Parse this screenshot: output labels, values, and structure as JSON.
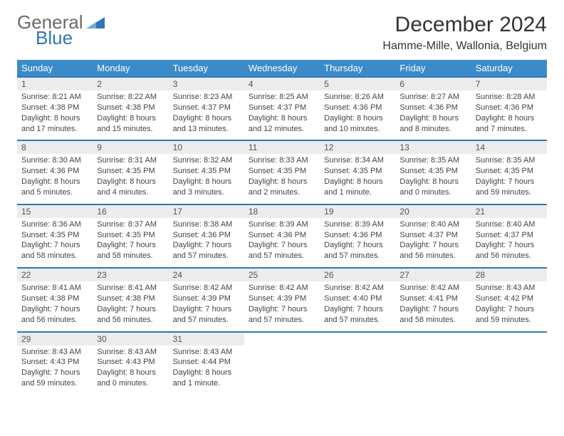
{
  "logo": {
    "word1": "General",
    "word2": "Blue",
    "tri_color": "#2f76b9",
    "gray": "#6a6a6a"
  },
  "title": "December 2024",
  "location": "Hamme-Mille, Wallonia, Belgium",
  "header_bg": "#3b8bc9",
  "accent_border": "#2f76b9",
  "daynum_bg": "#ececec",
  "text_color": "#444444",
  "day_names": [
    "Sunday",
    "Monday",
    "Tuesday",
    "Wednesday",
    "Thursday",
    "Friday",
    "Saturday"
  ],
  "weeks": [
    [
      {
        "n": "1",
        "sr": "Sunrise: 8:21 AM",
        "ss": "Sunset: 4:38 PM",
        "d1": "Daylight: 8 hours",
        "d2": "and 17 minutes."
      },
      {
        "n": "2",
        "sr": "Sunrise: 8:22 AM",
        "ss": "Sunset: 4:38 PM",
        "d1": "Daylight: 8 hours",
        "d2": "and 15 minutes."
      },
      {
        "n": "3",
        "sr": "Sunrise: 8:23 AM",
        "ss": "Sunset: 4:37 PM",
        "d1": "Daylight: 8 hours",
        "d2": "and 13 minutes."
      },
      {
        "n": "4",
        "sr": "Sunrise: 8:25 AM",
        "ss": "Sunset: 4:37 PM",
        "d1": "Daylight: 8 hours",
        "d2": "and 12 minutes."
      },
      {
        "n": "5",
        "sr": "Sunrise: 8:26 AM",
        "ss": "Sunset: 4:36 PM",
        "d1": "Daylight: 8 hours",
        "d2": "and 10 minutes."
      },
      {
        "n": "6",
        "sr": "Sunrise: 8:27 AM",
        "ss": "Sunset: 4:36 PM",
        "d1": "Daylight: 8 hours",
        "d2": "and 8 minutes."
      },
      {
        "n": "7",
        "sr": "Sunrise: 8:28 AM",
        "ss": "Sunset: 4:36 PM",
        "d1": "Daylight: 8 hours",
        "d2": "and 7 minutes."
      }
    ],
    [
      {
        "n": "8",
        "sr": "Sunrise: 8:30 AM",
        "ss": "Sunset: 4:36 PM",
        "d1": "Daylight: 8 hours",
        "d2": "and 5 minutes."
      },
      {
        "n": "9",
        "sr": "Sunrise: 8:31 AM",
        "ss": "Sunset: 4:35 PM",
        "d1": "Daylight: 8 hours",
        "d2": "and 4 minutes."
      },
      {
        "n": "10",
        "sr": "Sunrise: 8:32 AM",
        "ss": "Sunset: 4:35 PM",
        "d1": "Daylight: 8 hours",
        "d2": "and 3 minutes."
      },
      {
        "n": "11",
        "sr": "Sunrise: 8:33 AM",
        "ss": "Sunset: 4:35 PM",
        "d1": "Daylight: 8 hours",
        "d2": "and 2 minutes."
      },
      {
        "n": "12",
        "sr": "Sunrise: 8:34 AM",
        "ss": "Sunset: 4:35 PM",
        "d1": "Daylight: 8 hours",
        "d2": "and 1 minute."
      },
      {
        "n": "13",
        "sr": "Sunrise: 8:35 AM",
        "ss": "Sunset: 4:35 PM",
        "d1": "Daylight: 8 hours",
        "d2": "and 0 minutes."
      },
      {
        "n": "14",
        "sr": "Sunrise: 8:35 AM",
        "ss": "Sunset: 4:35 PM",
        "d1": "Daylight: 7 hours",
        "d2": "and 59 minutes."
      }
    ],
    [
      {
        "n": "15",
        "sr": "Sunrise: 8:36 AM",
        "ss": "Sunset: 4:35 PM",
        "d1": "Daylight: 7 hours",
        "d2": "and 58 minutes."
      },
      {
        "n": "16",
        "sr": "Sunrise: 8:37 AM",
        "ss": "Sunset: 4:35 PM",
        "d1": "Daylight: 7 hours",
        "d2": "and 58 minutes."
      },
      {
        "n": "17",
        "sr": "Sunrise: 8:38 AM",
        "ss": "Sunset: 4:36 PM",
        "d1": "Daylight: 7 hours",
        "d2": "and 57 minutes."
      },
      {
        "n": "18",
        "sr": "Sunrise: 8:39 AM",
        "ss": "Sunset: 4:36 PM",
        "d1": "Daylight: 7 hours",
        "d2": "and 57 minutes."
      },
      {
        "n": "19",
        "sr": "Sunrise: 8:39 AM",
        "ss": "Sunset: 4:36 PM",
        "d1": "Daylight: 7 hours",
        "d2": "and 57 minutes."
      },
      {
        "n": "20",
        "sr": "Sunrise: 8:40 AM",
        "ss": "Sunset: 4:37 PM",
        "d1": "Daylight: 7 hours",
        "d2": "and 56 minutes."
      },
      {
        "n": "21",
        "sr": "Sunrise: 8:40 AM",
        "ss": "Sunset: 4:37 PM",
        "d1": "Daylight: 7 hours",
        "d2": "and 56 minutes."
      }
    ],
    [
      {
        "n": "22",
        "sr": "Sunrise: 8:41 AM",
        "ss": "Sunset: 4:38 PM",
        "d1": "Daylight: 7 hours",
        "d2": "and 56 minutes."
      },
      {
        "n": "23",
        "sr": "Sunrise: 8:41 AM",
        "ss": "Sunset: 4:38 PM",
        "d1": "Daylight: 7 hours",
        "d2": "and 56 minutes."
      },
      {
        "n": "24",
        "sr": "Sunrise: 8:42 AM",
        "ss": "Sunset: 4:39 PM",
        "d1": "Daylight: 7 hours",
        "d2": "and 57 minutes."
      },
      {
        "n": "25",
        "sr": "Sunrise: 8:42 AM",
        "ss": "Sunset: 4:39 PM",
        "d1": "Daylight: 7 hours",
        "d2": "and 57 minutes."
      },
      {
        "n": "26",
        "sr": "Sunrise: 8:42 AM",
        "ss": "Sunset: 4:40 PM",
        "d1": "Daylight: 7 hours",
        "d2": "and 57 minutes."
      },
      {
        "n": "27",
        "sr": "Sunrise: 8:42 AM",
        "ss": "Sunset: 4:41 PM",
        "d1": "Daylight: 7 hours",
        "d2": "and 58 minutes."
      },
      {
        "n": "28",
        "sr": "Sunrise: 8:43 AM",
        "ss": "Sunset: 4:42 PM",
        "d1": "Daylight: 7 hours",
        "d2": "and 59 minutes."
      }
    ],
    [
      {
        "n": "29",
        "sr": "Sunrise: 8:43 AM",
        "ss": "Sunset: 4:43 PM",
        "d1": "Daylight: 7 hours",
        "d2": "and 59 minutes."
      },
      {
        "n": "30",
        "sr": "Sunrise: 8:43 AM",
        "ss": "Sunset: 4:43 PM",
        "d1": "Daylight: 8 hours",
        "d2": "and 0 minutes."
      },
      {
        "n": "31",
        "sr": "Sunrise: 8:43 AM",
        "ss": "Sunset: 4:44 PM",
        "d1": "Daylight: 8 hours",
        "d2": "and 1 minute."
      },
      null,
      null,
      null,
      null
    ]
  ]
}
